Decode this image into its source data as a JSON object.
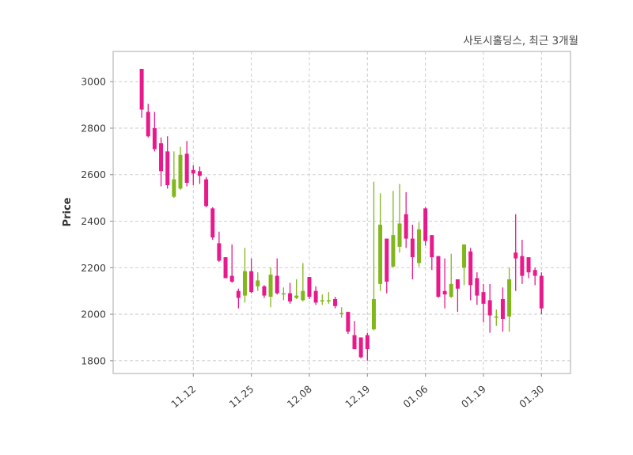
{
  "chart_data": {
    "type": "candlestick",
    "title": "사토시홀딩스, 최근 3개월",
    "ylabel": "Price",
    "y_ticks": [
      1800,
      2000,
      2200,
      2400,
      2600,
      2800,
      3000
    ],
    "ylim": [
      1745,
      3130
    ],
    "xlim": [
      -4.43,
      66.5
    ],
    "x_tick_labels": [
      "11.12",
      "11.25",
      "12.08",
      "12.19",
      "01.06",
      "01.19",
      "01.30"
    ],
    "x_tick_indices": [
      8,
      17,
      26,
      35,
      44,
      53,
      62
    ],
    "grid": "dashed",
    "legend": "none",
    "colors": {
      "up": "#82b71c",
      "down": "#e8198b",
      "grid": "#d2d2d2",
      "spine": "#c9c9c9",
      "tick": "#9e9e9e",
      "text": "#3d3d3d",
      "background": "#ffffff"
    },
    "candles_format": "open_high_low_close",
    "candles": [
      [
        3055,
        3055,
        2845,
        2880
      ],
      [
        2870,
        2905,
        2760,
        2765
      ],
      [
        2800,
        2870,
        2700,
        2710
      ],
      [
        2735,
        2760,
        2550,
        2615
      ],
      [
        2700,
        2765,
        2540,
        2555
      ],
      [
        2505,
        2700,
        2500,
        2580
      ],
      [
        2540,
        2720,
        2535,
        2685
      ],
      [
        2690,
        2745,
        2550,
        2565
      ],
      [
        2620,
        2640,
        2555,
        2605
      ],
      [
        2615,
        2635,
        2560,
        2595
      ],
      [
        2580,
        2590,
        2460,
        2465
      ],
      [
        2455,
        2460,
        2320,
        2330
      ],
      [
        2305,
        2355,
        2225,
        2230
      ],
      [
        2245,
        2245,
        2155,
        2155
      ],
      [
        2165,
        2300,
        2135,
        2140
      ],
      [
        2100,
        2110,
        2025,
        2070
      ],
      [
        2080,
        2285,
        2050,
        2185
      ],
      [
        2185,
        2240,
        2090,
        2095
      ],
      [
        2120,
        2180,
        2100,
        2145
      ],
      [
        2120,
        2125,
        2070,
        2080
      ],
      [
        2075,
        2200,
        2030,
        2170
      ],
      [
        2165,
        2240,
        2085,
        2090
      ],
      [
        2085,
        2115,
        2060,
        2090
      ],
      [
        2090,
        2135,
        2045,
        2055
      ],
      [
        2070,
        2150,
        2065,
        2080
      ],
      [
        2060,
        2220,
        2055,
        2100
      ],
      [
        2160,
        2160,
        2065,
        2075
      ],
      [
        2100,
        2120,
        2040,
        2050
      ],
      [
        2055,
        2085,
        2040,
        2060
      ],
      [
        2055,
        2095,
        2045,
        2060
      ],
      [
        2065,
        2075,
        2025,
        2035
      ],
      [
        2000,
        2030,
        1985,
        2005
      ],
      [
        2010,
        2010,
        1915,
        1925
      ],
      [
        1910,
        1970,
        1850,
        1850
      ],
      [
        1900,
        1900,
        1810,
        1815
      ],
      [
        1910,
        1920,
        1800,
        1850
      ],
      [
        1935,
        2570,
        1930,
        2065
      ],
      [
        2130,
        2520,
        2100,
        2385
      ],
      [
        2325,
        2325,
        2090,
        2140
      ],
      [
        2205,
        2530,
        2200,
        2340
      ],
      [
        2290,
        2560,
        2265,
        2390
      ],
      [
        2430,
        2525,
        2285,
        2325
      ],
      [
        2325,
        2385,
        2150,
        2245
      ],
      [
        2220,
        2395,
        2205,
        2365
      ],
      [
        2455,
        2460,
        2295,
        2315
      ],
      [
        2340,
        2340,
        2190,
        2245
      ],
      [
        2250,
        2250,
        2070,
        2075
      ],
      [
        2100,
        2240,
        2025,
        2085
      ],
      [
        2075,
        2260,
        2070,
        2130
      ],
      [
        2150,
        2150,
        2010,
        2110
      ],
      [
        2200,
        2300,
        2125,
        2300
      ],
      [
        2270,
        2285,
        2060,
        2125
      ],
      [
        2155,
        2180,
        2040,
        2080
      ],
      [
        2095,
        2130,
        1965,
        2045
      ],
      [
        2060,
        2130,
        1920,
        1995
      ],
      [
        1985,
        2020,
        1950,
        1990
      ],
      [
        2065,
        2115,
        1925,
        1980
      ],
      [
        1990,
        2200,
        1925,
        2150
      ],
      [
        2265,
        2430,
        2100,
        2240
      ],
      [
        2250,
        2320,
        2130,
        2165
      ],
      [
        2245,
        2245,
        2155,
        2180
      ],
      [
        2190,
        2200,
        2125,
        2165
      ],
      [
        2165,
        2180,
        2000,
        2025
      ]
    ]
  }
}
